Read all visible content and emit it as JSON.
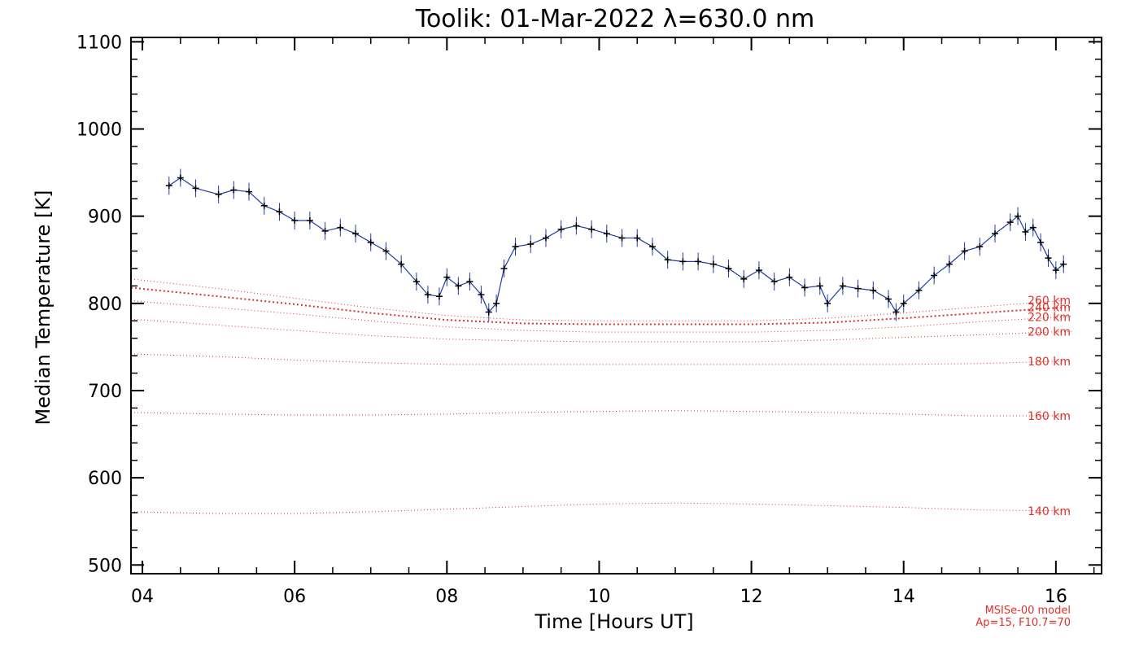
{
  "chart_data": {
    "type": "line",
    "title": "Toolik: 01-Mar-2022 λ=630.0 nm",
    "xlabel": "Time [Hours UT]",
    "ylabel": "Median Temperature [K]",
    "xlim": [
      3.85,
      16.6
    ],
    "ylim": [
      490,
      1105
    ],
    "x_ticks": [
      4,
      6,
      8,
      10,
      12,
      14,
      16
    ],
    "x_tick_labels": [
      "04",
      "06",
      "08",
      "10",
      "12",
      "14",
      "16"
    ],
    "y_ticks": [
      500,
      600,
      700,
      800,
      900,
      1000,
      1100
    ],
    "y_tick_labels": [
      "500",
      "600",
      "700",
      "800",
      "900",
      "1000",
      "1100"
    ],
    "grid": false,
    "colors": {
      "measurement_line": "#1f3ea8",
      "measurement_marker": "#000000",
      "model": "#e0302a"
    },
    "series": [
      {
        "kind": "measurement",
        "x": [
          4.35,
          4.5,
          4.7,
          5.0,
          5.2,
          5.4,
          5.6,
          5.8,
          6.0,
          6.2,
          6.4,
          6.6,
          6.8,
          7.0,
          7.2,
          7.4,
          7.6,
          7.75,
          7.9,
          8.0,
          8.15,
          8.3,
          8.45,
          8.55,
          8.65,
          8.75,
          8.9,
          9.1,
          9.3,
          9.5,
          9.7,
          9.9,
          10.1,
          10.3,
          10.5,
          10.7,
          10.9,
          11.1,
          11.3,
          11.5,
          11.7,
          11.9,
          12.1,
          12.3,
          12.5,
          12.7,
          12.9,
          13.0,
          13.2,
          13.4,
          13.6,
          13.8,
          13.9,
          14.0,
          14.2,
          14.4,
          14.6,
          14.8,
          15.0,
          15.2,
          15.4,
          15.5,
          15.6,
          15.7,
          15.8,
          15.9,
          16.0,
          16.1
        ],
        "y": [
          935,
          944,
          932,
          925,
          930,
          928,
          912,
          905,
          895,
          895,
          883,
          887,
          880,
          870,
          860,
          845,
          825,
          810,
          808,
          830,
          820,
          825,
          810,
          790,
          800,
          840,
          865,
          868,
          875,
          885,
          889,
          885,
          880,
          875,
          875,
          865,
          850,
          848,
          848,
          845,
          840,
          828,
          838,
          825,
          830,
          818,
          820,
          800,
          820,
          817,
          815,
          805,
          790,
          800,
          815,
          832,
          845,
          860,
          865,
          880,
          893,
          900,
          882,
          887,
          870,
          852,
          838,
          845
        ]
      },
      {
        "kind": "model",
        "name": "140 km",
        "x": [
          3.85,
          5,
          6,
          7,
          8,
          9,
          10,
          11,
          12,
          13,
          14,
          15,
          16.2
        ],
        "y": [
          561,
          559,
          559,
          561,
          564,
          567,
          570,
          571,
          570,
          568,
          566,
          563,
          562
        ]
      },
      {
        "kind": "model",
        "name": "160 km",
        "x": [
          3.85,
          5,
          6,
          7,
          8,
          9,
          10,
          11,
          12,
          13,
          14,
          15,
          16.2
        ],
        "y": [
          675,
          673,
          672,
          672,
          673,
          675,
          676,
          677,
          676,
          675,
          673,
          671,
          671
        ]
      },
      {
        "kind": "model",
        "name": "180 km",
        "x": [
          3.85,
          5,
          6,
          7,
          8,
          9,
          10,
          11,
          12,
          13,
          14,
          15,
          16.2
        ],
        "y": [
          742,
          739,
          735,
          732,
          730,
          730,
          730,
          730,
          730,
          730,
          730,
          731,
          734
        ]
      },
      {
        "kind": "model",
        "name": "200 km",
        "x": [
          3.85,
          5,
          6,
          7,
          8,
          9,
          10,
          11,
          12,
          13,
          14,
          15,
          16.2
        ],
        "y": [
          782,
          775,
          769,
          763,
          759,
          757,
          756,
          756,
          756,
          758,
          761,
          764,
          768
        ]
      },
      {
        "kind": "model",
        "name": "220 km",
        "x": [
          3.85,
          5,
          6,
          7,
          8,
          9,
          10,
          11,
          12,
          13,
          14,
          15,
          16.2
        ],
        "y": [
          803,
          795,
          788,
          780,
          773,
          769,
          767,
          767,
          767,
          769,
          773,
          779,
          785
        ]
      },
      {
        "kind": "model",
        "name": "240 km",
        "x": [
          3.85,
          5,
          6,
          7,
          8,
          9,
          10,
          11,
          12,
          13,
          14,
          15,
          16.2
        ],
        "y": [
          818,
          808,
          799,
          789,
          781,
          777,
          776,
          776,
          776,
          778,
          783,
          789,
          796
        ]
      },
      {
        "kind": "model",
        "name": "260 km",
        "x": [
          3.85,
          5,
          6,
          7,
          8,
          9,
          10,
          11,
          12,
          13,
          14,
          15,
          16.2
        ],
        "y": [
          828,
          817,
          806,
          795,
          786,
          781,
          780,
          780,
          780,
          783,
          789,
          796,
          804
        ]
      }
    ],
    "model_labels": [
      "140 km",
      "160 km",
      "180 km",
      "200 km",
      "220 km",
      "240 km",
      "260 km"
    ],
    "annotation": [
      "MSISe-00 model",
      "Ap=15, F10.7=70"
    ]
  }
}
